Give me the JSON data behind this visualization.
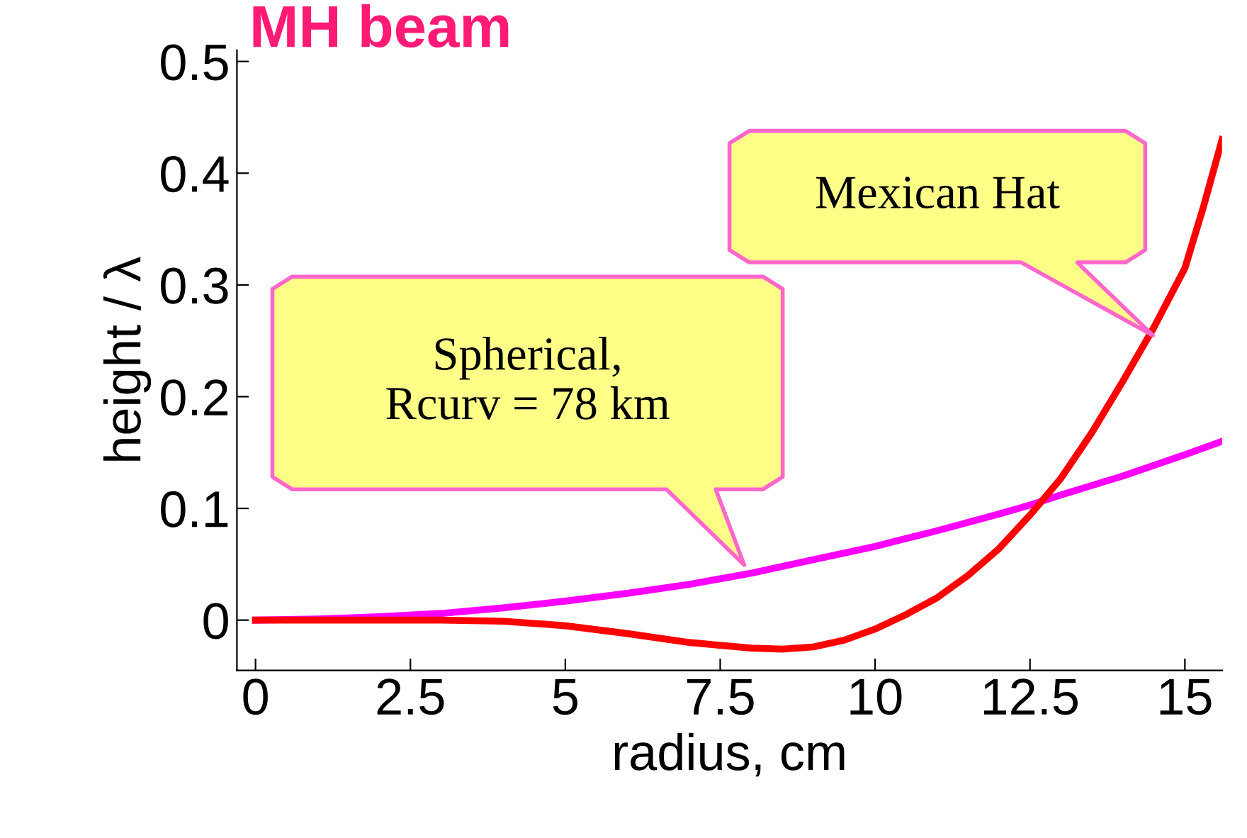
{
  "chart_data": {
    "type": "line",
    "title": "MH beam",
    "xlabel": "radius, cm",
    "ylabel": "height / λ",
    "xlim": [
      -0.3,
      15.6
    ],
    "ylim": [
      -0.045,
      0.51
    ],
    "xticks": [
      0,
      2.5,
      5,
      7.5,
      10,
      12.5,
      15
    ],
    "yticks": [
      0,
      0.1,
      0.2,
      0.3,
      0.4,
      0.5
    ],
    "grid": false,
    "legend": false,
    "marker": "none",
    "line_style": "solid",
    "series": [
      {
        "color": "#ff00ff",
        "x": [
          0,
          1,
          2,
          3,
          4,
          5,
          6,
          7,
          7.5,
          8,
          9,
          10,
          11,
          12,
          12.5,
          13,
          14,
          15,
          15.6
        ],
        "values": [
          0,
          0.001,
          0.003,
          0.006,
          0.011,
          0.017,
          0.024,
          0.032,
          0.037,
          0.042,
          0.054,
          0.066,
          0.08,
          0.095,
          0.103,
          0.112,
          0.129,
          0.148,
          0.16
        ]
      },
      {
        "color": "#ff0000",
        "x": [
          0,
          1,
          2,
          3,
          4,
          5,
          6,
          7,
          8,
          8.5,
          9,
          9.5,
          10,
          10.5,
          11,
          11.5,
          12,
          12.5,
          13,
          13.5,
          14,
          14.5,
          15,
          15.3,
          15.6
        ],
        "values": [
          0,
          0,
          0,
          0,
          -0.001,
          -0.005,
          -0.012,
          -0.02,
          -0.025,
          -0.026,
          -0.024,
          -0.018,
          -0.008,
          0.005,
          0.02,
          0.04,
          0.064,
          0.094,
          0.127,
          0.168,
          0.214,
          0.262,
          0.315,
          0.37,
          0.43
        ]
      }
    ],
    "annotations": [
      "Spherical,\nRcurv = 78 km",
      "Mexican Hat"
    ]
  }
}
